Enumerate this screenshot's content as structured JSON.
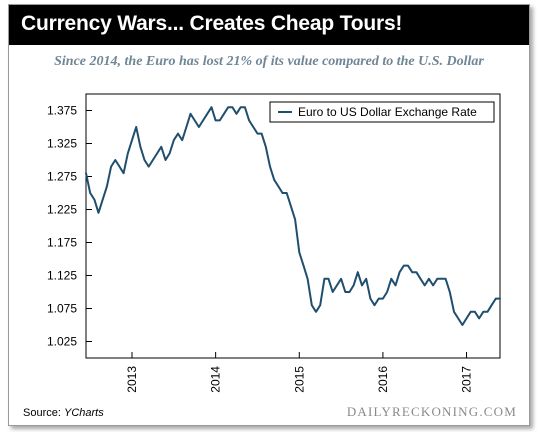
{
  "banner": {
    "title": "Currency Wars... Creates Cheap Tours!"
  },
  "source": {
    "label": "Source:",
    "name": "YCharts"
  },
  "brand": "DAILYRECKONING.COM",
  "colors": {
    "banner_bg": "#000000",
    "series_line": "#1f4e6e",
    "subtitle": "#6f8696"
  },
  "chart_data": {
    "type": "line",
    "title": "Since 2014, the Euro has lost 21% of its value compared to the U.S. Dollar",
    "xlabel": "",
    "ylabel": "",
    "ylim": [
      1.0,
      1.4
    ],
    "xlim": [
      2012.45,
      2017.4
    ],
    "yticks": [
      1.025,
      1.075,
      1.125,
      1.175,
      1.225,
      1.275,
      1.325,
      1.375
    ],
    "ytick_labels": [
      "1.025",
      "1.075",
      "1.125",
      "1.175",
      "1.225",
      "1.275",
      "1.325",
      "1.375"
    ],
    "xticks": [
      2013,
      2014,
      2015,
      2016,
      2017
    ],
    "xtick_labels": [
      "2013",
      "2014",
      "2015",
      "2016",
      "2017"
    ],
    "grid": false,
    "legend_position": "top-right",
    "series": [
      {
        "name": "Euro to US Dollar Exchange Rate",
        "x": [
          2012.45,
          2012.5,
          2012.55,
          2012.6,
          2012.65,
          2012.7,
          2012.75,
          2012.8,
          2012.85,
          2012.9,
          2012.95,
          2013.0,
          2013.05,
          2013.1,
          2013.15,
          2013.2,
          2013.25,
          2013.3,
          2013.35,
          2013.4,
          2013.45,
          2013.5,
          2013.55,
          2013.6,
          2013.65,
          2013.7,
          2013.75,
          2013.8,
          2013.85,
          2013.9,
          2013.95,
          2014.0,
          2014.05,
          2014.1,
          2014.15,
          2014.2,
          2014.25,
          2014.3,
          2014.35,
          2014.4,
          2014.45,
          2014.5,
          2014.55,
          2014.6,
          2014.65,
          2014.7,
          2014.75,
          2014.8,
          2014.85,
          2014.9,
          2014.95,
          2015.0,
          2015.05,
          2015.1,
          2015.15,
          2015.2,
          2015.25,
          2015.3,
          2015.35,
          2015.4,
          2015.45,
          2015.5,
          2015.55,
          2015.6,
          2015.65,
          2015.7,
          2015.75,
          2015.8,
          2015.85,
          2015.9,
          2015.95,
          2016.0,
          2016.05,
          2016.1,
          2016.15,
          2016.2,
          2016.25,
          2016.3,
          2016.35,
          2016.4,
          2016.45,
          2016.5,
          2016.55,
          2016.6,
          2016.65,
          2016.7,
          2016.75,
          2016.8,
          2016.85,
          2016.9,
          2016.95,
          2017.0,
          2017.05,
          2017.1,
          2017.15,
          2017.2,
          2017.25,
          2017.3,
          2017.35,
          2017.4
        ],
        "values": [
          1.28,
          1.25,
          1.24,
          1.22,
          1.24,
          1.26,
          1.29,
          1.3,
          1.29,
          1.28,
          1.31,
          1.33,
          1.35,
          1.32,
          1.3,
          1.29,
          1.3,
          1.31,
          1.32,
          1.3,
          1.31,
          1.33,
          1.34,
          1.33,
          1.35,
          1.37,
          1.36,
          1.35,
          1.36,
          1.37,
          1.38,
          1.36,
          1.36,
          1.37,
          1.38,
          1.38,
          1.37,
          1.38,
          1.38,
          1.36,
          1.35,
          1.34,
          1.34,
          1.32,
          1.29,
          1.27,
          1.26,
          1.25,
          1.25,
          1.23,
          1.21,
          1.16,
          1.14,
          1.12,
          1.08,
          1.07,
          1.08,
          1.12,
          1.12,
          1.1,
          1.11,
          1.12,
          1.1,
          1.1,
          1.11,
          1.13,
          1.11,
          1.12,
          1.09,
          1.08,
          1.09,
          1.09,
          1.1,
          1.12,
          1.11,
          1.13,
          1.14,
          1.14,
          1.13,
          1.13,
          1.12,
          1.11,
          1.12,
          1.11,
          1.12,
          1.12,
          1.12,
          1.1,
          1.07,
          1.06,
          1.05,
          1.06,
          1.07,
          1.07,
          1.06,
          1.07,
          1.07,
          1.08,
          1.09,
          1.09
        ]
      }
    ]
  }
}
